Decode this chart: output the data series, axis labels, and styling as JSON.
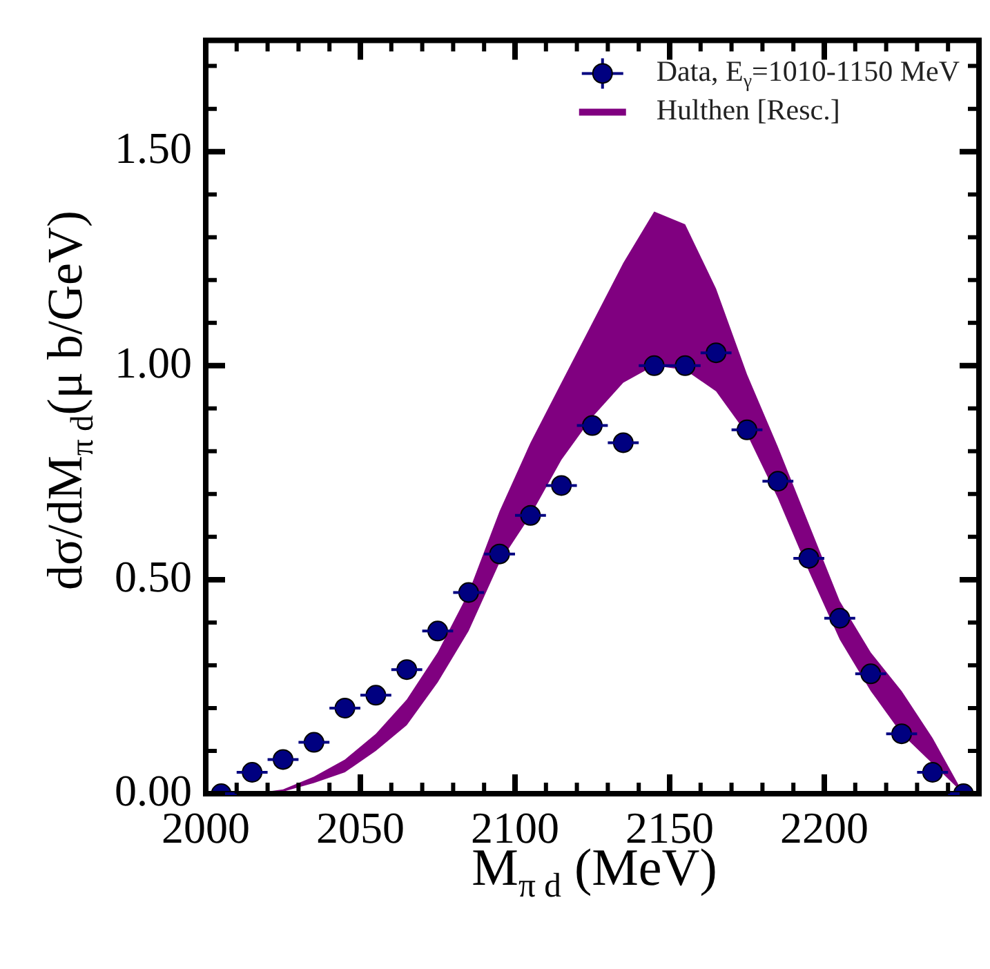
{
  "chart_data": {
    "type": "scatter",
    "xlabel": "M$_{π d}$ (MeV)",
    "ylabel": "dσ/dM$_{π d}$(μ b/GeV)",
    "xlim": [
      2000,
      2250
    ],
    "ylim": [
      0,
      1.76
    ],
    "xticks": [
      {
        "value": 2000,
        "label": "2000"
      },
      {
        "value": 2010,
        "label": null
      },
      {
        "value": 2020,
        "label": null
      },
      {
        "value": 2030,
        "label": null
      },
      {
        "value": 2040,
        "label": null
      },
      {
        "value": 2050,
        "label": "2050"
      },
      {
        "value": 2060,
        "label": null
      },
      {
        "value": 2070,
        "label": null
      },
      {
        "value": 2080,
        "label": null
      },
      {
        "value": 2090,
        "label": null
      },
      {
        "value": 2100,
        "label": "2100"
      },
      {
        "value": 2110,
        "label": null
      },
      {
        "value": 2120,
        "label": null
      },
      {
        "value": 2130,
        "label": null
      },
      {
        "value": 2140,
        "label": null
      },
      {
        "value": 2150,
        "label": "2150"
      },
      {
        "value": 2160,
        "label": null
      },
      {
        "value": 2170,
        "label": null
      },
      {
        "value": 2180,
        "label": null
      },
      {
        "value": 2190,
        "label": null
      },
      {
        "value": 2200,
        "label": "2200"
      },
      {
        "value": 2210,
        "label": null
      },
      {
        "value": 2220,
        "label": null
      },
      {
        "value": 2230,
        "label": null
      },
      {
        "value": 2240,
        "label": null
      }
    ],
    "yticks": [
      {
        "value": 0,
        "label": "0.00"
      },
      {
        "value": 0.1,
        "label": null
      },
      {
        "value": 0.2,
        "label": null
      },
      {
        "value": 0.3,
        "label": null
      },
      {
        "value": 0.4,
        "label": null
      },
      {
        "value": 0.5,
        "label": "0.50"
      },
      {
        "value": 0.6,
        "label": null
      },
      {
        "value": 0.7,
        "label": null
      },
      {
        "value": 0.8,
        "label": null
      },
      {
        "value": 0.9,
        "label": null
      },
      {
        "value": 1,
        "label": "1.00"
      },
      {
        "value": 1.1,
        "label": null
      },
      {
        "value": 1.2,
        "label": null
      },
      {
        "value": 1.3,
        "label": null
      },
      {
        "value": 1.4,
        "label": null
      },
      {
        "value": 1.5,
        "label": "1.50"
      },
      {
        "value": 1.6,
        "label": null
      },
      {
        "value": 1.7,
        "label": null
      }
    ],
    "legend": "top right",
    "marker": "circle",
    "series": [
      {
        "name": "Data, E$_{γ}$=1010-1150 MeV",
        "color": "#000080",
        "x": [
          2005,
          2015,
          2025,
          2035,
          2045,
          2055,
          2065,
          2075,
          2085,
          2095,
          2105,
          2115,
          2125,
          2135,
          2145,
          2155,
          2165,
          2175,
          2185,
          2195,
          2205,
          2215,
          2225,
          2235,
          2245
        ],
        "values": [
          0.0,
          0.05,
          0.08,
          0.12,
          0.2,
          0.23,
          0.29,
          0.38,
          0.47,
          0.56,
          0.65,
          0.72,
          0.86,
          0.82,
          1.0,
          1.0,
          1.03,
          0.85,
          0.73,
          0.55,
          0.41,
          0.28,
          0.14,
          0.05,
          0.0
        ],
        "xerrors": [
          5,
          5,
          5,
          5,
          5,
          5,
          5,
          5,
          5,
          5,
          5,
          5,
          5,
          5,
          5,
          5,
          5,
          5,
          5,
          5,
          5,
          5,
          5,
          5,
          5
        ]
      },
      {
        "name": "Hulthen [Resc.]",
        "type": "line",
        "color": "#800080",
        "x": [
          2015,
          2025,
          2035,
          2045,
          2055,
          2065,
          2075,
          2085,
          2095,
          2105,
          2115,
          2125,
          2135,
          2145,
          2155,
          2165,
          2175,
          2185,
          2195,
          2205,
          2215,
          2225,
          2235,
          2245
        ],
        "values": [
          null,
          null,
          null,
          null,
          null,
          null,
          null,
          null,
          null,
          null,
          null,
          null,
          null,
          null,
          null,
          null,
          null,
          null,
          null,
          null,
          null,
          null,
          null,
          null
        ],
        "lower": [
          0,
          0.005,
          0.025,
          0.05,
          0.1,
          0.16,
          0.26,
          0.38,
          0.54,
          0.65,
          0.78,
          0.88,
          0.96,
          1.0,
          0.99,
          0.94,
          0.84,
          0.69,
          0.52,
          0.36,
          0.24,
          0.14,
          0.07,
          0
        ],
        "upper": [
          0,
          0.01,
          0.04,
          0.08,
          0.14,
          0.22,
          0.33,
          0.47,
          0.66,
          0.82,
          0.96,
          1.1,
          1.24,
          1.36,
          1.33,
          1.18,
          0.98,
          0.81,
          0.63,
          0.45,
          0.33,
          0.24,
          0.13,
          0
        ]
      }
    ]
  }
}
